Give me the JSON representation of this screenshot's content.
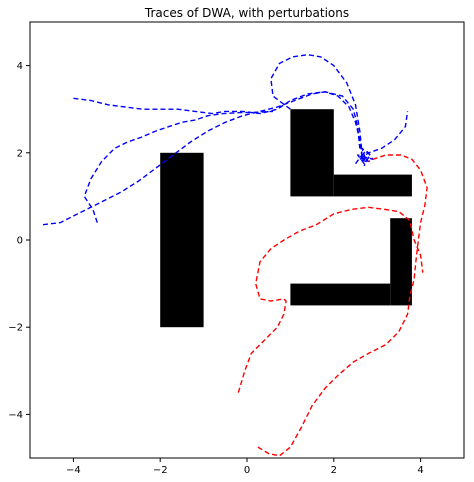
{
  "chart_data": {
    "type": "line",
    "title": "Traces of DWA, with perturbations",
    "xlabel": "",
    "ylabel": "",
    "xlim": [
      -5,
      5
    ],
    "ylim": [
      -5,
      5
    ],
    "grid": false,
    "x_ticks": [
      -4,
      -2,
      0,
      2,
      4
    ],
    "y_ticks": [
      -4,
      -2,
      0,
      2,
      4
    ],
    "obstacles": [
      {
        "x": [
          -2,
          -1
        ],
        "y": [
          -2,
          2
        ]
      },
      {
        "x": [
          1,
          2
        ],
        "y": [
          1,
          3
        ]
      },
      {
        "x": [
          2,
          3.8
        ],
        "y": [
          1,
          1.5
        ]
      },
      {
        "x": [
          3.3,
          3.8
        ],
        "y": [
          -1.5,
          0.5
        ]
      },
      {
        "x": [
          1,
          3.3
        ],
        "y": [
          -1.5,
          -1
        ]
      }
    ],
    "series": [
      {
        "color": "#0000ff",
        "style": "dashed",
        "x": [
          -3.45,
          -3.55,
          -3.75,
          -3.6,
          -3.35,
          -3.05,
          -2.75,
          -2.45,
          -2.1,
          -1.8,
          -1.5,
          -1.2,
          -0.9,
          -0.55,
          -0.2,
          0.2,
          0.6
        ],
        "y": [
          0.4,
          0.7,
          1.0,
          1.4,
          1.8,
          2.1,
          2.25,
          2.35,
          2.5,
          2.6,
          2.7,
          2.75,
          2.85,
          2.9,
          2.92,
          2.93,
          2.95
        ]
      },
      {
        "color": "#0000ff",
        "style": "dashed",
        "x": [
          -4.7,
          -4.3,
          -4.0,
          -3.7,
          -3.3,
          -2.9,
          -2.5,
          -2.1,
          -1.7,
          -1.3,
          -0.9,
          -0.5,
          -0.1,
          0.3,
          0.7,
          1.1,
          1.5,
          1.8,
          2.1,
          2.35,
          2.5,
          2.6,
          2.65
        ],
        "y": [
          0.35,
          0.4,
          0.55,
          0.7,
          0.9,
          1.1,
          1.35,
          1.65,
          1.95,
          2.25,
          2.5,
          2.7,
          2.85,
          2.95,
          3.05,
          3.2,
          3.35,
          3.4,
          3.3,
          3.05,
          2.7,
          2.3,
          1.9
        ]
      },
      {
        "color": "#0000ff",
        "style": "dashed",
        "x": [
          -4.0,
          -3.6,
          -3.2,
          -2.8,
          -2.4,
          -2.0,
          -1.6,
          -1.2,
          -0.8,
          -0.5,
          -0.1,
          0.3,
          0.7,
          1.0,
          1.4,
          1.8,
          2.2,
          2.45,
          2.55,
          2.6
        ],
        "y": [
          3.25,
          3.2,
          3.1,
          3.05,
          3.0,
          3.0,
          3.0,
          2.95,
          2.9,
          2.95,
          2.95,
          2.9,
          3.0,
          3.2,
          3.35,
          3.4,
          3.3,
          3.0,
          2.6,
          2.1
        ]
      },
      {
        "color": "#0000ff",
        "style": "dashed",
        "x": [
          1.0,
          0.6,
          0.55,
          0.75,
          1.05,
          1.4,
          1.7,
          2.0,
          2.3,
          2.5,
          2.6,
          2.65
        ],
        "y": [
          3.0,
          3.3,
          3.7,
          4.05,
          4.2,
          4.25,
          4.2,
          4.0,
          3.6,
          3.1,
          2.5,
          2.0
        ]
      },
      {
        "color": "#0000ff",
        "style": "dashed",
        "x": [
          2.6,
          2.8,
          3.1,
          3.4,
          3.65,
          3.7
        ],
        "y": [
          1.85,
          2.0,
          2.1,
          2.3,
          2.6,
          2.95
        ]
      },
      {
        "color": "#0000ff",
        "style": "dashed",
        "x": [
          2.5,
          2.65,
          2.8,
          2.6,
          2.75,
          2.9,
          2.55,
          2.7,
          2.85,
          2.65,
          2.75,
          2.6,
          2.8,
          2.7
        ],
        "y": [
          1.75,
          1.95,
          1.8,
          1.9,
          2.05,
          1.85,
          1.95,
          1.75,
          1.95,
          2.1,
          1.8,
          1.85,
          1.9,
          1.7
        ]
      },
      {
        "color": "#ff0000",
        "style": "dashed",
        "x": [
          -0.2,
          -0.05,
          0.1,
          0.3,
          0.5,
          0.7,
          0.85,
          0.9,
          0.85,
          0.55,
          0.3,
          0.2,
          0.3,
          0.55,
          0.85,
          1.2,
          1.6,
          2.0,
          2.4,
          2.8,
          3.2,
          3.5,
          3.75,
          3.85,
          4.0,
          4.05
        ],
        "y": [
          -3.5,
          -3.0,
          -2.6,
          -2.4,
          -2.2,
          -2.0,
          -1.7,
          -1.4,
          -1.35,
          -1.4,
          -1.35,
          -1.0,
          -0.5,
          -0.2,
          0.0,
          0.2,
          0.35,
          0.6,
          0.7,
          0.75,
          0.7,
          0.65,
          0.45,
          0.0,
          -0.35,
          -0.75
        ]
      },
      {
        "color": "#ff0000",
        "style": "dashed",
        "x": [
          0.25,
          0.5,
          0.75,
          1.0,
          1.25,
          1.5,
          1.8,
          2.1,
          2.45,
          2.8,
          3.2,
          3.5,
          3.7,
          3.75,
          3.85,
          3.9,
          3.95,
          4.0,
          4.1,
          4.15,
          4.0,
          3.8,
          3.55,
          3.2,
          2.9,
          2.8
        ],
        "y": [
          -4.75,
          -4.9,
          -4.95,
          -4.75,
          -4.3,
          -3.8,
          -3.4,
          -3.1,
          -2.8,
          -2.6,
          -2.4,
          -2.1,
          -1.7,
          -1.3,
          -0.9,
          -0.4,
          0.0,
          0.4,
          0.8,
          1.2,
          1.6,
          1.85,
          1.95,
          1.95,
          1.85,
          1.8
        ]
      }
    ]
  }
}
